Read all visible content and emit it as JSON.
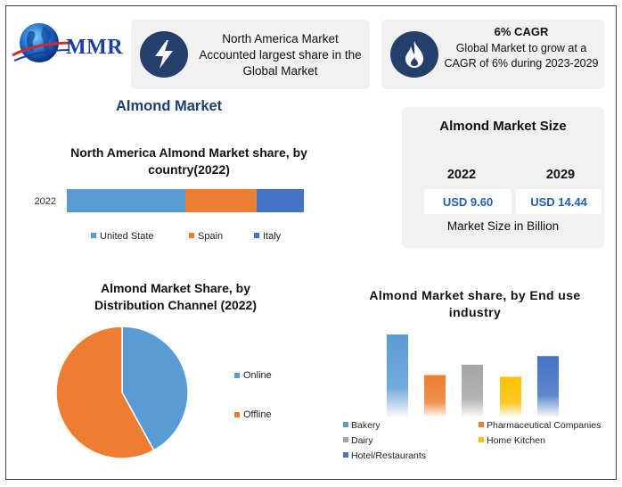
{
  "brand": {
    "logo_text": "MMR"
  },
  "highlights": [
    {
      "icon": "lightning-icon",
      "text": "North America Market Accounted largest share in the Global Market"
    },
    {
      "icon": "flame-icon",
      "title": "6% CAGR",
      "text": "Global Market to grow at a CAGR of 6% during 2023-2029"
    }
  ],
  "section_title": "Almond Market",
  "market_size": {
    "title": "Almond Market Size",
    "years": [
      "2022",
      "2029"
    ],
    "values": [
      "USD 9.60",
      "USD 14.44"
    ],
    "unit_label": "Market Size in Billion"
  },
  "colors": {
    "blue": "#5b9bd5",
    "orange": "#ed7d31",
    "gray": "#a5a5a5",
    "yellow": "#ffc000",
    "dark_blue": "#4472c4",
    "navy": "#1f3f6e"
  },
  "chart_data": [
    {
      "type": "bar",
      "orientation": "horizontal-stacked",
      "title": "North America Almond Market share, by country(2022)",
      "categories": [
        "2022"
      ],
      "series": [
        {
          "name": "United State",
          "values": [
            50
          ],
          "color": "#5b9bd5"
        },
        {
          "name": "Spain",
          "values": [
            30
          ],
          "color": "#ed7d31"
        },
        {
          "name": "Italy",
          "values": [
            20
          ],
          "color": "#4472c4"
        }
      ],
      "legend_position": "bottom",
      "grid": false
    },
    {
      "type": "pie",
      "title": "Almond Market Share, by Distribution Channel (2022)",
      "labels": [
        "Online",
        "Offline"
      ],
      "values": [
        42,
        58
      ],
      "colors": [
        "#5b9bd5",
        "#ed7d31"
      ],
      "legend_position": "right"
    },
    {
      "type": "bar",
      "title": "Almond Market share, by End use industry",
      "categories": [
        "Bakery",
        "Pharmaceutical Companies",
        "Dairy",
        "Home Kitchen",
        "Hotel/Restaurants"
      ],
      "values": [
        95,
        48,
        60,
        46,
        70
      ],
      "colors": [
        "#5b9bd5",
        "#ed7d31",
        "#a5a5a5",
        "#ffc000",
        "#4472c4"
      ],
      "legend_position": "bottom",
      "grid": false
    }
  ]
}
